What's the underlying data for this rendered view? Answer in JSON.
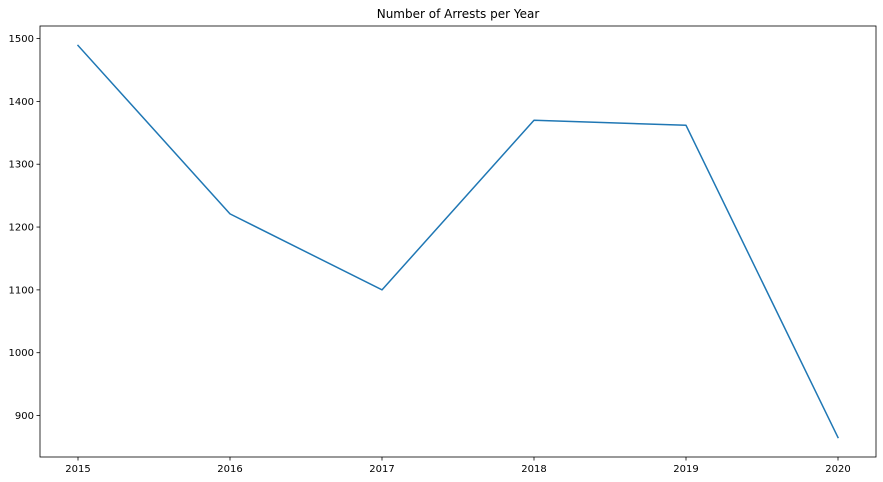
{
  "chart_data": {
    "type": "line",
    "title": "Number of Arrests per Year",
    "xlabel": "",
    "ylabel": "",
    "x": [
      2015,
      2016,
      2017,
      2018,
      2019,
      2020
    ],
    "series": [
      {
        "values": [
          1489,
          1221,
          1100,
          1370,
          1362,
          865
        ],
        "color": "#1f77b4"
      }
    ],
    "xlim": [
      2014.75,
      2020.25
    ],
    "ylim": [
      834,
      1520
    ],
    "xticks": [
      2015,
      2016,
      2017,
      2018,
      2019,
      2020
    ],
    "yticks": [
      900,
      1000,
      1100,
      1200,
      1300,
      1400,
      1500
    ],
    "grid": false,
    "legend": "none"
  }
}
